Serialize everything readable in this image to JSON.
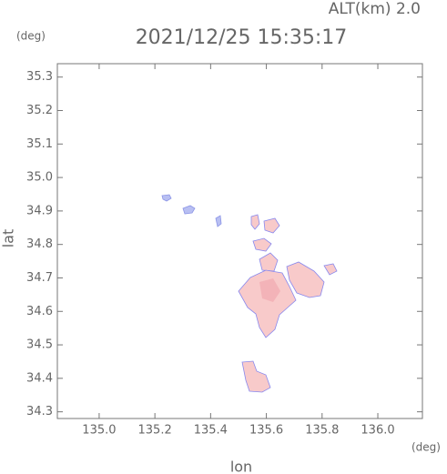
{
  "chart_data": {
    "type": "map",
    "title": "2021/12/25 15:35:17",
    "subtitle": "ALT(km) 2.0",
    "y_unit": "(deg)",
    "x_unit": "(deg)",
    "x_label": "lon",
    "y_label": "lat",
    "xlim": [
      134.85,
      136.16
    ],
    "ylim": [
      34.28,
      35.34
    ],
    "xticks": [
      {
        "value": 135.0,
        "label": "135.0"
      },
      {
        "value": 135.2,
        "label": "135.2"
      },
      {
        "value": 135.4,
        "label": "135.4"
      },
      {
        "value": 135.6,
        "label": "135.6"
      },
      {
        "value": 135.8,
        "label": "135.8"
      },
      {
        "value": 136.0,
        "label": "136.0"
      }
    ],
    "yticks": [
      {
        "value": 34.3,
        "label": "34.3"
      },
      {
        "value": 34.4,
        "label": "34.4"
      },
      {
        "value": 34.5,
        "label": "34.5"
      },
      {
        "value": 34.6,
        "label": "34.6"
      },
      {
        "value": 34.7,
        "label": "34.7"
      },
      {
        "value": 34.8,
        "label": "34.8"
      },
      {
        "value": 34.9,
        "label": "34.9"
      },
      {
        "value": 35.0,
        "label": "35.0"
      },
      {
        "value": 35.1,
        "label": "35.1"
      },
      {
        "value": 35.2,
        "label": "35.2"
      },
      {
        "value": 35.3,
        "label": "35.3"
      }
    ]
  }
}
